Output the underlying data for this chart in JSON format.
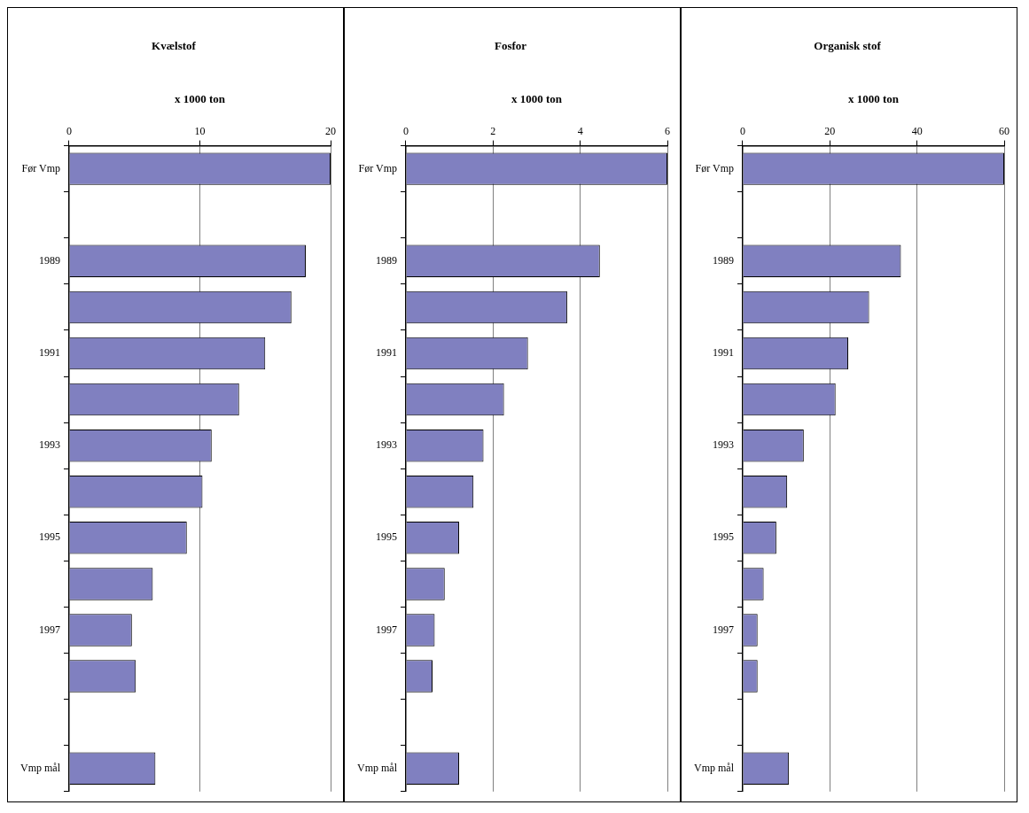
{
  "chart_data": [
    {
      "type": "bar",
      "orientation": "horizontal",
      "title": "Kvælstof",
      "xlabel": "x 1000 ton",
      "categories": [
        "Før Vmp",
        null,
        "1989",
        null,
        "1991",
        null,
        "1993",
        null,
        "1995",
        null,
        "1997",
        null,
        null,
        "Vmp mål"
      ],
      "values": [
        20,
        null,
        18.1,
        17.0,
        15.0,
        13.0,
        10.9,
        10.2,
        9.0,
        6.4,
        4.8,
        5.1,
        null,
        6.6
      ],
      "color": "#8080c0",
      "xlim": [
        0,
        20
      ],
      "xticks": [
        0,
        10,
        20
      ],
      "grid": "x",
      "legend": false
    },
    {
      "type": "bar",
      "orientation": "horizontal",
      "title": "Fosfor",
      "xlabel": "x 1000 ton",
      "categories": [
        "Før Vmp",
        null,
        "1989",
        null,
        "1991",
        null,
        "1993",
        null,
        "1995",
        null,
        "1997",
        null,
        null,
        "Vmp mål"
      ],
      "values": [
        6,
        null,
        4.45,
        3.7,
        2.8,
        2.25,
        1.78,
        1.55,
        1.22,
        0.89,
        0.66,
        0.61,
        null,
        1.22
      ],
      "color": "#8080c0",
      "xlim": [
        0,
        6
      ],
      "xticks": [
        0,
        2,
        4,
        6
      ],
      "grid": "x",
      "legend": false
    },
    {
      "type": "bar",
      "orientation": "horizontal",
      "title": "Organisk stof",
      "xlabel": "x 1000 ton",
      "categories": [
        "Før Vmp",
        null,
        "1989",
        null,
        "1991",
        null,
        "1993",
        null,
        "1995",
        null,
        "1997",
        null,
        null,
        "Vmp mål"
      ],
      "values": [
        60,
        null,
        36.3,
        29,
        24.2,
        21.3,
        14,
        10.2,
        7.7,
        4.8,
        3.4,
        3.4,
        null,
        10.6
      ],
      "color": "#8080c0",
      "xlim": [
        0,
        60
      ],
      "xticks": [
        0,
        20,
        40,
        60
      ],
      "grid": "x",
      "legend": false
    }
  ]
}
